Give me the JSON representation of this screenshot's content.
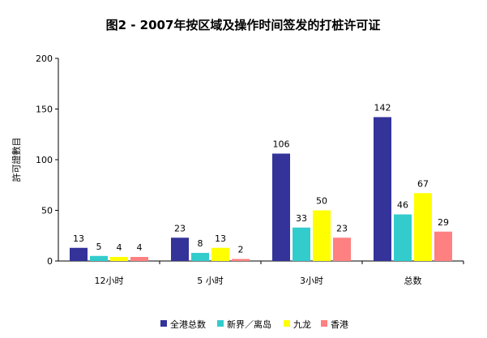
{
  "chart_data": {
    "type": "bar",
    "title": "图2 - 2007年按区域及操作时间签发的打桩许可证",
    "xlabel": "",
    "ylabel": "許可證數目",
    "ylim": [
      0,
      200
    ],
    "yticks": [
      0,
      50,
      100,
      150,
      200
    ],
    "grid": false,
    "legend": "bottom",
    "categories": [
      "12小时",
      "5 小时",
      "3小时",
      "总数"
    ],
    "series": [
      {
        "name": "全港总数",
        "color": "#333399",
        "values": [
          13,
          23,
          106,
          142
        ]
      },
      {
        "name": "新界／离岛",
        "color": "#33CCCC",
        "values": [
          5,
          8,
          33,
          46
        ]
      },
      {
        "name": "九龙",
        "color": "#FFFF00",
        "values": [
          4,
          13,
          50,
          67
        ]
      },
      {
        "name": "香港",
        "color": "#FF8080",
        "values": [
          4,
          2,
          23,
          29
        ]
      }
    ]
  }
}
